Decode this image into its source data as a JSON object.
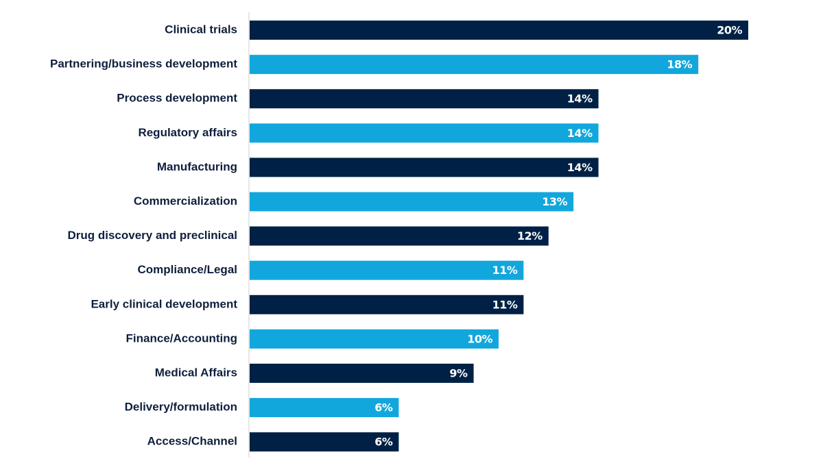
{
  "chart_data": {
    "type": "bar",
    "orientation": "horizontal",
    "categories": [
      "Clinical trials",
      "Partnering/business development",
      "Process development",
      "Regulatory affairs",
      "Manufacturing",
      "Commercialization",
      "Drug discovery and preclinical",
      "Compliance/Legal",
      "Early clinical development",
      "Finance/Accounting",
      "Medical Affairs",
      "Delivery/formulation",
      "Access/Channel"
    ],
    "values": [
      20,
      18,
      14,
      14,
      14,
      13,
      12,
      11,
      11,
      10,
      9,
      6,
      6
    ],
    "value_labels": [
      "20%",
      "18%",
      "14%",
      "14%",
      "14%",
      "13%",
      "12%",
      "11%",
      "11%",
      "10%",
      "9%",
      "6%",
      "6%"
    ],
    "bar_colors": [
      "#002145",
      "#12a7dc",
      "#002145",
      "#12a7dc",
      "#002145",
      "#12a7dc",
      "#002145",
      "#12a7dc",
      "#002145",
      "#12a7dc",
      "#002145",
      "#12a7dc",
      "#002145"
    ],
    "axis_line_color": "#cccccc",
    "label_color": "#0f1f3d",
    "value_label_color": "#ffffff",
    "xlim": [
      0,
      20
    ],
    "grid": false,
    "legend": "none",
    "title": "",
    "xlabel": "",
    "ylabel": ""
  }
}
